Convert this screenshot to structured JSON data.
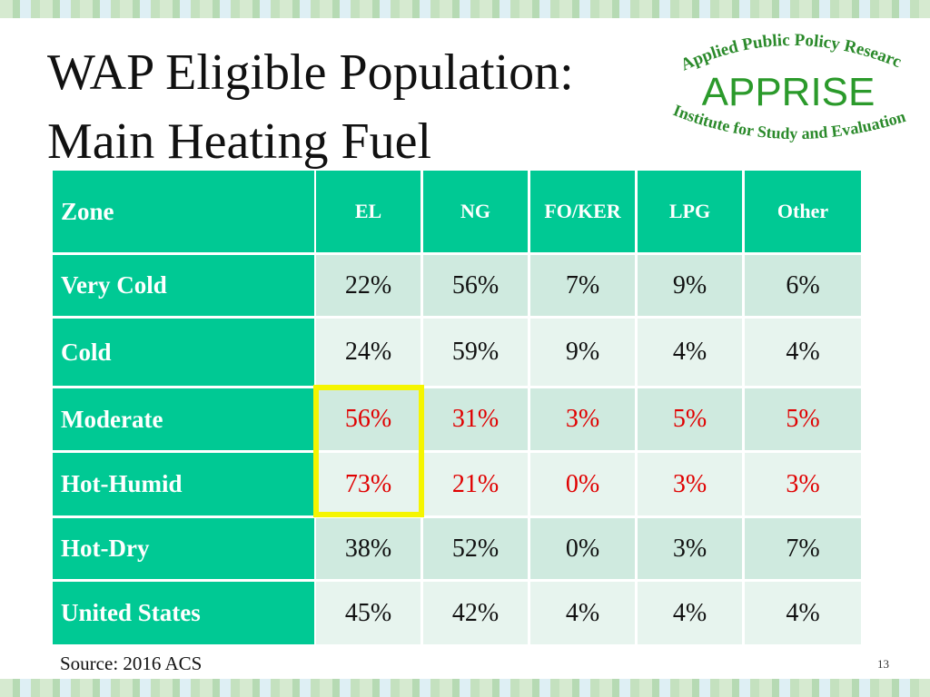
{
  "header": {
    "title_lines": [
      "WAP Eligible Population:",
      "Main Heating Fuel"
    ]
  },
  "logo": {
    "top": "Applied Public Policy Research",
    "name": "APPRISE",
    "bottom": "Institute for Study and Evaluation"
  },
  "table": {
    "columns": [
      "Zone",
      "EL",
      "NG",
      "FO/KER",
      "LPG",
      "Other"
    ],
    "rows": [
      [
        "Very Cold",
        "22%",
        "56%",
        "7%",
        "9%",
        "6%"
      ],
      [
        "Cold",
        "24%",
        "59%",
        "9%",
        "4%",
        "4%"
      ],
      [
        "Moderate",
        "56%",
        "31%",
        "3%",
        "5%",
        "5%"
      ],
      [
        "Hot-Humid",
        "73%",
        "21%",
        "0%",
        "3%",
        "3%"
      ],
      [
        "Hot-Dry",
        "38%",
        "52%",
        "0%",
        "3%",
        "7%"
      ],
      [
        "United States",
        "45%",
        "42%",
        "4%",
        "4%",
        "4%"
      ]
    ]
  },
  "footer": {
    "source": "Source: 2016 ACS",
    "page": "13"
  }
}
